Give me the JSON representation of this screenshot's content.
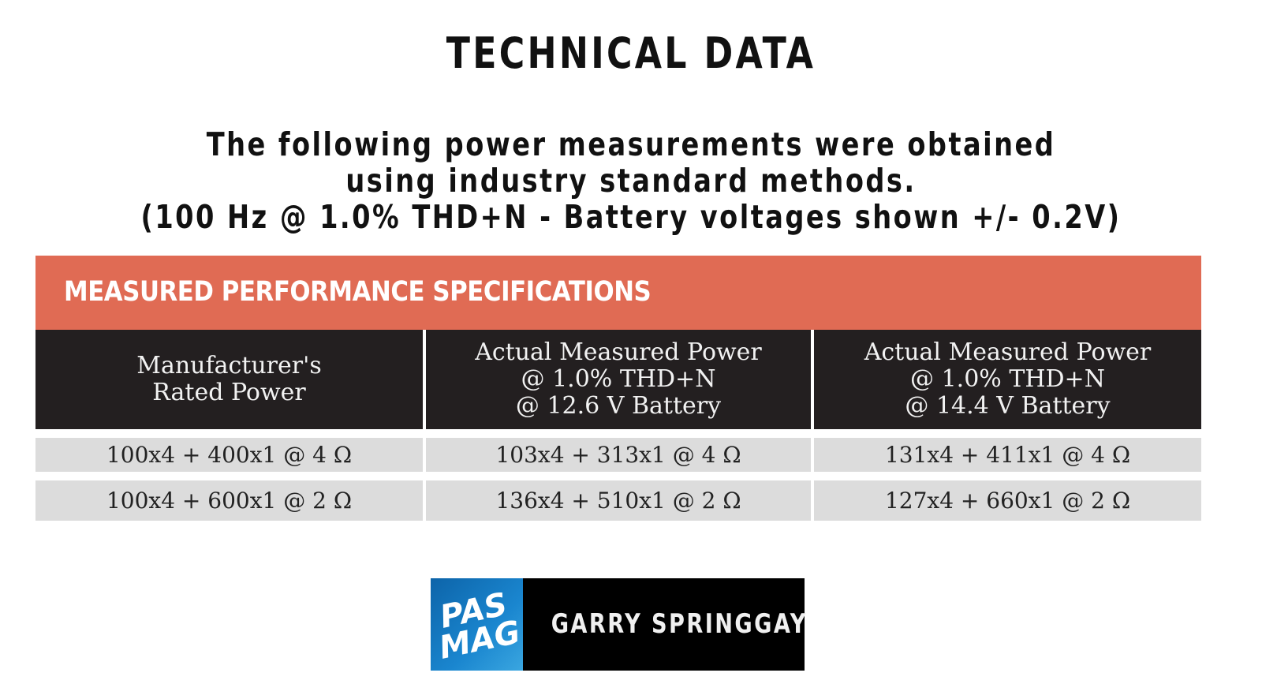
{
  "header": {
    "title": "TECHNICAL DATA",
    "intro_lines": [
      "The following power measurements were obtained",
      "using industry standard methods.",
      "(100 Hz @ 1.0% THD+N - Battery voltages shown +/- 0.2V)"
    ]
  },
  "table": {
    "title": "MEASURED PERFORMANCE SPECIFICATIONS",
    "columns": [
      [
        "Manufacturer's",
        "Rated Power"
      ],
      [
        "Actual Measured Power",
        "@  1.0% THD+N",
        "@ 12.6 V Battery"
      ],
      [
        "Actual Measured Power",
        "@  1.0% THD+N",
        "@ 14.4 V Battery"
      ]
    ],
    "rows": [
      [
        "100x4 + 400x1 @ 4 Ω",
        "103x4 + 313x1 @ 4 Ω",
        "131x4 + 411x1 @ 4 Ω"
      ],
      [
        "100x4 + 600x1 @ 2 Ω",
        "136x4 + 510x1 @ 2 Ω",
        "127x4 + 660x1 @ 2 Ω"
      ]
    ]
  },
  "footer": {
    "logo_text": [
      "PAS",
      "MAG"
    ],
    "author": "GARRY SPRINGGAY"
  },
  "colors": {
    "banner": "#e06b54",
    "header_bg": "#231f20",
    "row_bg": "#dcdcdc",
    "logo_blue": "#1a86cf"
  }
}
